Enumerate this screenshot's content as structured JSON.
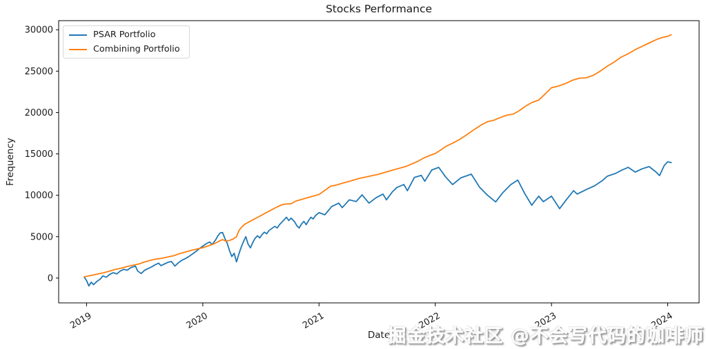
{
  "figure": {
    "title": "Stocks Performance",
    "xlabel": "Date",
    "ylabel": "Frequency",
    "watermark": "掘金技术社区 @不会写代码的咖啡师"
  },
  "colors": {
    "axis": "#000000",
    "text": "#1a1a1a",
    "legend_border": "#d8d8d8",
    "psar_line": "#1f77b4",
    "combining_line": "#ff7f0e"
  },
  "chart_data": {
    "type": "line",
    "title": "Stocks Performance",
    "xlabel": "Date",
    "ylabel": "Frequency",
    "grid": false,
    "legend_position": "upper left",
    "x_tick_rotation": 30,
    "xlim": [
      2018.76,
      2024.27
    ],
    "ylim": [
      -3000,
      31100
    ],
    "x_ticks": {
      "values": [
        2019,
        2020,
        2021,
        2022,
        2023,
        2024
      ],
      "labels": [
        "2019",
        "2020",
        "2021",
        "2022",
        "2023",
        "2024"
      ]
    },
    "y_ticks": {
      "values": [
        0,
        5000,
        10000,
        15000,
        20000,
        25000,
        30000
      ],
      "labels": [
        "0",
        "5000",
        "10000",
        "15000",
        "20000",
        "25000",
        "30000"
      ]
    },
    "series": [
      {
        "name": "PSAR Portfolio",
        "color": "#1f77b4",
        "points": [
          [
            2018.98,
            100
          ],
          [
            2019.0,
            -300
          ],
          [
            2019.02,
            -950
          ],
          [
            2019.04,
            -500
          ],
          [
            2019.06,
            -800
          ],
          [
            2019.09,
            -400
          ],
          [
            2019.12,
            -100
          ],
          [
            2019.14,
            250
          ],
          [
            2019.17,
            100
          ],
          [
            2019.2,
            450
          ],
          [
            2019.23,
            650
          ],
          [
            2019.26,
            500
          ],
          [
            2019.29,
            850
          ],
          [
            2019.32,
            1050
          ],
          [
            2019.35,
            950
          ],
          [
            2019.38,
            1250
          ],
          [
            2019.42,
            1450
          ],
          [
            2019.44,
            850
          ],
          [
            2019.47,
            550
          ],
          [
            2019.5,
            950
          ],
          [
            2019.53,
            1150
          ],
          [
            2019.56,
            1350
          ],
          [
            2019.59,
            1600
          ],
          [
            2019.62,
            1800
          ],
          [
            2019.64,
            1500
          ],
          [
            2019.67,
            1700
          ],
          [
            2019.7,
            1900
          ],
          [
            2019.73,
            2000
          ],
          [
            2019.76,
            1450
          ],
          [
            2019.79,
            1850
          ],
          [
            2019.82,
            2150
          ],
          [
            2019.85,
            2350
          ],
          [
            2019.88,
            2600
          ],
          [
            2019.91,
            2900
          ],
          [
            2019.94,
            3200
          ],
          [
            2019.97,
            3550
          ],
          [
            2020.0,
            3850
          ],
          [
            2020.03,
            4150
          ],
          [
            2020.06,
            4350
          ],
          [
            2020.08,
            4050
          ],
          [
            2020.11,
            4600
          ],
          [
            2020.13,
            5100
          ],
          [
            2020.15,
            5450
          ],
          [
            2020.17,
            5500
          ],
          [
            2020.19,
            4800
          ],
          [
            2020.21,
            4200
          ],
          [
            2020.23,
            3300
          ],
          [
            2020.25,
            2600
          ],
          [
            2020.27,
            3000
          ],
          [
            2020.29,
            1950
          ],
          [
            2020.31,
            2900
          ],
          [
            2020.33,
            3700
          ],
          [
            2020.35,
            4400
          ],
          [
            2020.37,
            5000
          ],
          [
            2020.39,
            4100
          ],
          [
            2020.41,
            3650
          ],
          [
            2020.43,
            4300
          ],
          [
            2020.45,
            4800
          ],
          [
            2020.47,
            5100
          ],
          [
            2020.49,
            4850
          ],
          [
            2020.51,
            5250
          ],
          [
            2020.53,
            5550
          ],
          [
            2020.55,
            5350
          ],
          [
            2020.57,
            5750
          ],
          [
            2020.6,
            6050
          ],
          [
            2020.62,
            6250
          ],
          [
            2020.64,
            6050
          ],
          [
            2020.66,
            6450
          ],
          [
            2020.68,
            6750
          ],
          [
            2020.7,
            7050
          ],
          [
            2020.72,
            7350
          ],
          [
            2020.74,
            6950
          ],
          [
            2020.76,
            7250
          ],
          [
            2020.79,
            6800
          ],
          [
            2020.81,
            6300
          ],
          [
            2020.83,
            6050
          ],
          [
            2020.85,
            6550
          ],
          [
            2020.87,
            6850
          ],
          [
            2020.89,
            6450
          ],
          [
            2020.91,
            6950
          ],
          [
            2020.93,
            7350
          ],
          [
            2020.95,
            7150
          ],
          [
            2020.97,
            7550
          ],
          [
            2021.0,
            7900
          ],
          [
            2021.05,
            7650
          ],
          [
            2021.11,
            8650
          ],
          [
            2021.17,
            9050
          ],
          [
            2021.2,
            8500
          ],
          [
            2021.26,
            9450
          ],
          [
            2021.32,
            9250
          ],
          [
            2021.37,
            10050
          ],
          [
            2021.43,
            9050
          ],
          [
            2021.49,
            9700
          ],
          [
            2021.55,
            10150
          ],
          [
            2021.58,
            9450
          ],
          [
            2021.63,
            10400
          ],
          [
            2021.67,
            10950
          ],
          [
            2021.73,
            11300
          ],
          [
            2021.76,
            10550
          ],
          [
            2021.82,
            12150
          ],
          [
            2021.88,
            12400
          ],
          [
            2021.91,
            11700
          ],
          [
            2021.97,
            13050
          ],
          [
            2022.03,
            13380
          ],
          [
            2022.09,
            12200
          ],
          [
            2022.15,
            11300
          ],
          [
            2022.22,
            12100
          ],
          [
            2022.31,
            12550
          ],
          [
            2022.38,
            11000
          ],
          [
            2022.45,
            10000
          ],
          [
            2022.52,
            9200
          ],
          [
            2022.58,
            10300
          ],
          [
            2022.65,
            11300
          ],
          [
            2022.71,
            11840
          ],
          [
            2022.77,
            10200
          ],
          [
            2022.83,
            8800
          ],
          [
            2022.89,
            9890
          ],
          [
            2022.93,
            9230
          ],
          [
            2023.0,
            9890
          ],
          [
            2023.07,
            8390
          ],
          [
            2023.13,
            9500
          ],
          [
            2023.19,
            10560
          ],
          [
            2023.22,
            10150
          ],
          [
            2023.3,
            10700
          ],
          [
            2023.37,
            11140
          ],
          [
            2023.44,
            11800
          ],
          [
            2023.48,
            12300
          ],
          [
            2023.55,
            12640
          ],
          [
            2023.6,
            13000
          ],
          [
            2023.66,
            13380
          ],
          [
            2023.72,
            12800
          ],
          [
            2023.78,
            13200
          ],
          [
            2023.84,
            13470
          ],
          [
            2023.9,
            12800
          ],
          [
            2023.93,
            12380
          ],
          [
            2023.97,
            13600
          ],
          [
            2024.0,
            14050
          ],
          [
            2024.03,
            13950
          ]
        ]
      },
      {
        "name": "Combining Portfolio",
        "color": "#ff7f0e",
        "points": [
          [
            2018.98,
            150
          ],
          [
            2019.05,
            350
          ],
          [
            2019.1,
            500
          ],
          [
            2019.15,
            650
          ],
          [
            2019.2,
            850
          ],
          [
            2019.25,
            1050
          ],
          [
            2019.3,
            1200
          ],
          [
            2019.35,
            1400
          ],
          [
            2019.4,
            1550
          ],
          [
            2019.45,
            1700
          ],
          [
            2019.5,
            1950
          ],
          [
            2019.55,
            2150
          ],
          [
            2019.6,
            2300
          ],
          [
            2019.65,
            2400
          ],
          [
            2019.7,
            2550
          ],
          [
            2019.75,
            2700
          ],
          [
            2019.8,
            2950
          ],
          [
            2019.85,
            3150
          ],
          [
            2019.9,
            3350
          ],
          [
            2019.95,
            3500
          ],
          [
            2020.0,
            3660
          ],
          [
            2020.05,
            3900
          ],
          [
            2020.1,
            4150
          ],
          [
            2020.14,
            4450
          ],
          [
            2020.17,
            4650
          ],
          [
            2020.2,
            4450
          ],
          [
            2020.23,
            4550
          ],
          [
            2020.26,
            4700
          ],
          [
            2020.29,
            5000
          ],
          [
            2020.31,
            5700
          ],
          [
            2020.33,
            6100
          ],
          [
            2020.36,
            6500
          ],
          [
            2020.4,
            6800
          ],
          [
            2020.44,
            7100
          ],
          [
            2020.48,
            7400
          ],
          [
            2020.52,
            7700
          ],
          [
            2020.56,
            8000
          ],
          [
            2020.6,
            8300
          ],
          [
            2020.64,
            8600
          ],
          [
            2020.68,
            8850
          ],
          [
            2020.72,
            8950
          ],
          [
            2020.76,
            8980
          ],
          [
            2020.8,
            9300
          ],
          [
            2020.85,
            9500
          ],
          [
            2020.9,
            9700
          ],
          [
            2020.95,
            9900
          ],
          [
            2021.0,
            10100
          ],
          [
            2021.05,
            10600
          ],
          [
            2021.1,
            11100
          ],
          [
            2021.15,
            11250
          ],
          [
            2021.2,
            11450
          ],
          [
            2021.25,
            11650
          ],
          [
            2021.3,
            11850
          ],
          [
            2021.35,
            12050
          ],
          [
            2021.4,
            12200
          ],
          [
            2021.45,
            12350
          ],
          [
            2021.5,
            12500
          ],
          [
            2021.55,
            12700
          ],
          [
            2021.6,
            12900
          ],
          [
            2021.65,
            13100
          ],
          [
            2021.7,
            13300
          ],
          [
            2021.75,
            13500
          ],
          [
            2021.8,
            13800
          ],
          [
            2021.85,
            14100
          ],
          [
            2021.9,
            14500
          ],
          [
            2021.95,
            14800
          ],
          [
            2022.0,
            15050
          ],
          [
            2022.05,
            15500
          ],
          [
            2022.09,
            15900
          ],
          [
            2022.15,
            16300
          ],
          [
            2022.21,
            16750
          ],
          [
            2022.27,
            17300
          ],
          [
            2022.33,
            17900
          ],
          [
            2022.39,
            18450
          ],
          [
            2022.45,
            18900
          ],
          [
            2022.5,
            19050
          ],
          [
            2022.56,
            19400
          ],
          [
            2022.62,
            19700
          ],
          [
            2022.67,
            19800
          ],
          [
            2022.72,
            20200
          ],
          [
            2022.78,
            20800
          ],
          [
            2022.83,
            21200
          ],
          [
            2022.89,
            21500
          ],
          [
            2022.95,
            22300
          ],
          [
            2023.0,
            23000
          ],
          [
            2023.06,
            23200
          ],
          [
            2023.12,
            23500
          ],
          [
            2023.18,
            23900
          ],
          [
            2023.24,
            24150
          ],
          [
            2023.3,
            24200
          ],
          [
            2023.36,
            24500
          ],
          [
            2023.42,
            25000
          ],
          [
            2023.48,
            25600
          ],
          [
            2023.54,
            26100
          ],
          [
            2023.6,
            26700
          ],
          [
            2023.66,
            27100
          ],
          [
            2023.72,
            27600
          ],
          [
            2023.78,
            28000
          ],
          [
            2023.84,
            28400
          ],
          [
            2023.9,
            28800
          ],
          [
            2023.95,
            29050
          ],
          [
            2024.0,
            29200
          ],
          [
            2024.03,
            29400
          ]
        ]
      }
    ]
  }
}
